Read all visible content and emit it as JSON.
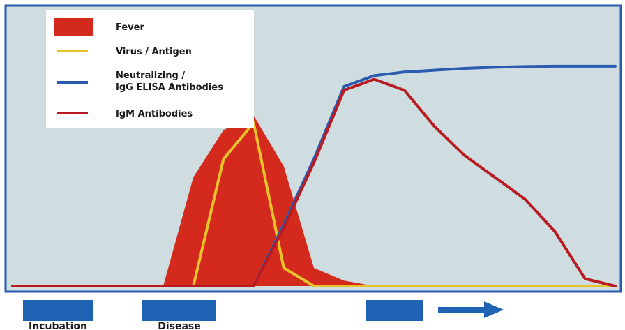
{
  "chart_data": {
    "type": "area",
    "title": "",
    "xlabel": "",
    "ylabel": "",
    "x": [
      0,
      5,
      10,
      15,
      20,
      25,
      30,
      35,
      40,
      45,
      50,
      55,
      60,
      65,
      70,
      75,
      80,
      85,
      90,
      95,
      100
    ],
    "ylim": [
      0,
      100
    ],
    "grid": false,
    "legend_position": "top-left",
    "series": [
      {
        "name": "Fever",
        "style": "area",
        "color": "#d42a1e",
        "values": [
          0,
          0,
          0,
          0,
          0,
          0,
          30,
          43,
          47,
          33,
          5,
          1.5,
          0,
          0,
          0,
          0,
          0,
          0,
          0,
          0,
          0
        ]
      },
      {
        "name": "Virus / Antigen",
        "style": "line",
        "color": "#e7c32a",
        "values": [
          0,
          0,
          0,
          0,
          0,
          0,
          0,
          35,
          45,
          5,
          0,
          0,
          0,
          0,
          0,
          0,
          0,
          0,
          0,
          0,
          0
        ]
      },
      {
        "name": "Neutralizing / IgG ELISA Antibodies",
        "style": "line",
        "color": "#2a5bb0",
        "values": [
          0,
          0,
          0,
          0,
          0,
          0,
          0,
          0,
          0,
          17,
          35,
          55,
          58,
          59,
          59.5,
          60,
          60.3,
          60.5,
          60.6,
          60.6,
          60.6
        ]
      },
      {
        "name": "IgM Antibodies",
        "style": "line",
        "color": "#b81c22",
        "values": [
          0,
          0,
          0,
          0,
          0,
          0,
          0,
          0,
          0,
          16,
          34,
          54,
          57,
          54,
          44,
          36,
          30,
          24,
          15,
          2,
          0
        ]
      }
    ],
    "legend": [
      {
        "text_1": "Fever",
        "text_2": "",
        "swatch": "area"
      },
      {
        "text_1": "Virus / Antigen",
        "text_2": "",
        "swatch": "line"
      },
      {
        "text_1": "Neutralizing /",
        "text_2": "IgG ELISA Antibodies",
        "swatch": "line"
      },
      {
        "text_1": "IgM Antibodies",
        "text_2": "",
        "swatch": "line"
      }
    ],
    "phases": [
      {
        "label": "Incubation"
      },
      {
        "label": "Disease"
      },
      {
        "label": ""
      }
    ]
  },
  "colors": {
    "plot_background": "#cfdde1",
    "plot_border": "#2a5bb0",
    "phase_bar": "#1f63b5"
  }
}
